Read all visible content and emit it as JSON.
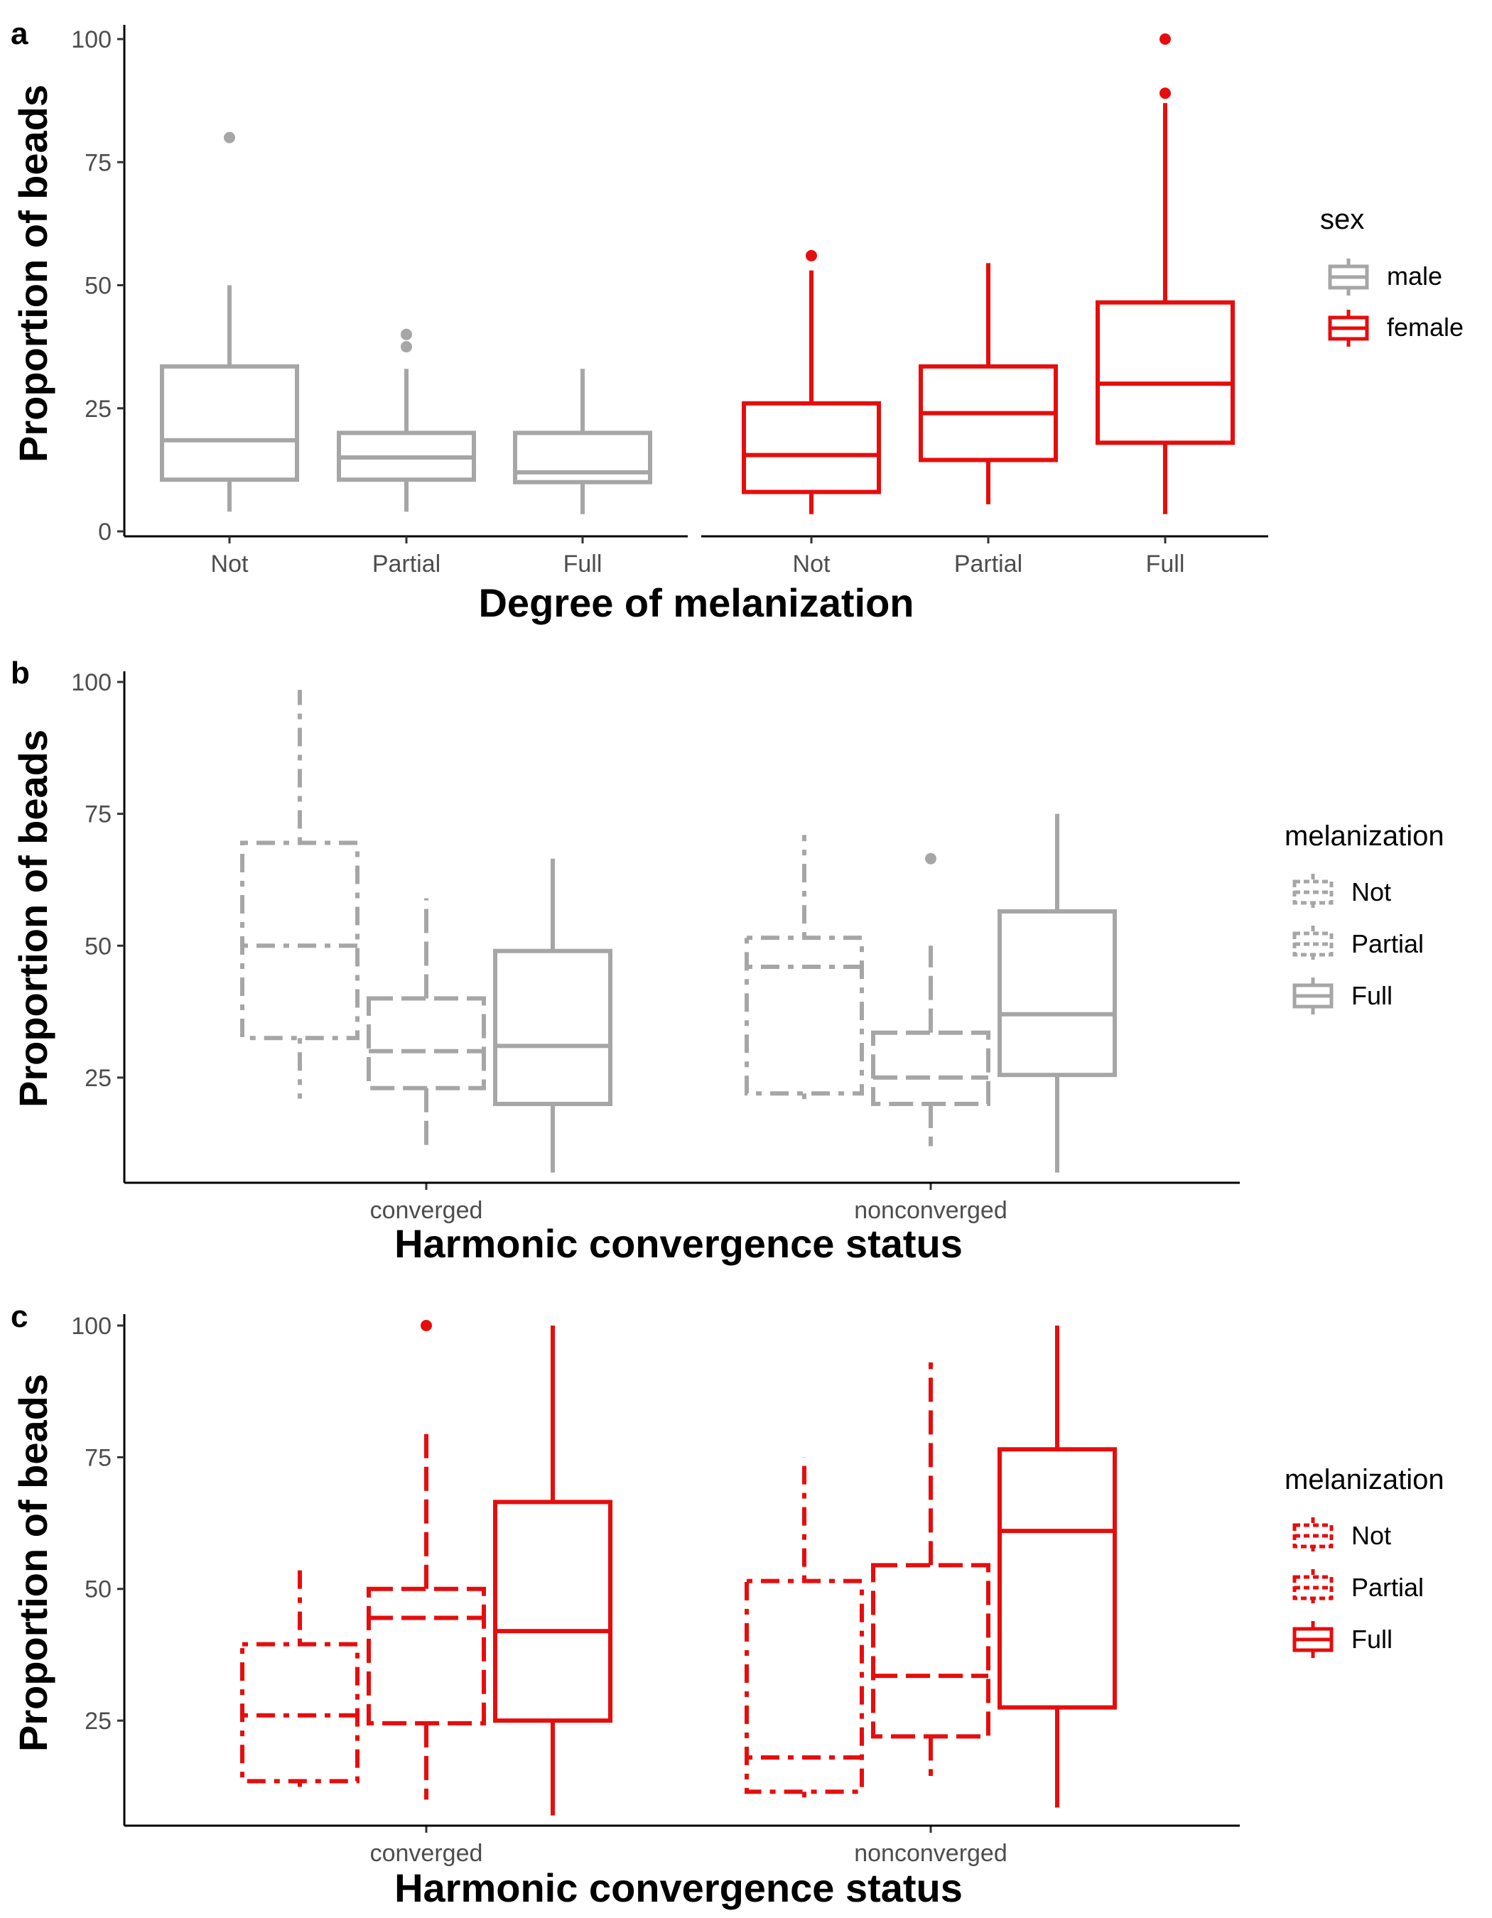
{
  "colors": {
    "male": "#a6a6a6",
    "female": "#e60d0d",
    "axis": "#000000",
    "tick_text": "#4d4d4d"
  },
  "chart_data": [
    {
      "panel": "a",
      "type": "boxplot",
      "ylabel": "Proportion of beads",
      "xlabel": "Degree of melanization",
      "ylim": [
        0,
        100
      ],
      "yticks": [
        0,
        25,
        50,
        75,
        100
      ],
      "legend": {
        "title": "sex",
        "placement": "right",
        "entries": [
          {
            "label": "male",
            "color": "#a6a6a6",
            "linetype": "solid"
          },
          {
            "label": "female",
            "color": "#e60d0d",
            "linetype": "solid"
          }
        ]
      },
      "facets": [
        {
          "group": "male",
          "color": "#a6a6a6",
          "boxes": [
            {
              "category": "Not",
              "min": 4,
              "q1": 10.5,
              "median": 18.5,
              "q3": 33.5,
              "max": 50,
              "outliers": [
                80
              ]
            },
            {
              "category": "Partial",
              "min": 4,
              "q1": 10.5,
              "median": 15,
              "q3": 20,
              "max": 33,
              "outliers": [
                37.5,
                40
              ]
            },
            {
              "category": "Full",
              "min": 3.5,
              "q1": 10,
              "median": 12,
              "q3": 20,
              "max": 33,
              "outliers": []
            }
          ]
        },
        {
          "group": "female",
          "color": "#e60d0d",
          "boxes": [
            {
              "category": "Not",
              "min": 3.5,
              "q1": 8,
              "median": 15.5,
              "q3": 26,
              "max": 53,
              "outliers": [
                56
              ]
            },
            {
              "category": "Partial",
              "min": 5.5,
              "q1": 14.5,
              "median": 24,
              "q3": 33.5,
              "max": 54.5,
              "outliers": []
            },
            {
              "category": "Full",
              "min": 3.5,
              "q1": 18,
              "median": 30,
              "q3": 46.5,
              "max": 87,
              "outliers": [
                89,
                100
              ]
            }
          ]
        }
      ]
    },
    {
      "panel": "b",
      "type": "boxplot",
      "ylabel": "Proportion of beads",
      "xlabel": "Harmonic convergence status",
      "ylim": [
        0,
        100
      ],
      "yticks": [
        25,
        50,
        75,
        100
      ],
      "categories": [
        "converged",
        "nonconverged"
      ],
      "legend": {
        "title": "melanization",
        "placement": "right",
        "entries": [
          {
            "label": "Not",
            "color": "#a6a6a6",
            "linetype": "dotdash"
          },
          {
            "label": "Partial",
            "color": "#a6a6a6",
            "linetype": "longdash"
          },
          {
            "label": "Full",
            "color": "#a6a6a6",
            "linetype": "solid"
          }
        ]
      },
      "series": [
        {
          "name": "Not",
          "color": "#a6a6a6",
          "linetype": "dotdash",
          "boxes": [
            {
              "category": "converged",
              "min": 21,
              "q1": 32.5,
              "median": 50,
              "q3": 69.5,
              "max": 98.5,
              "outliers": []
            },
            {
              "category": "nonconverged",
              "min": 20,
              "q1": 22,
              "median": 46,
              "q3": 51.5,
              "max": 71,
              "outliers": []
            }
          ]
        },
        {
          "name": "Partial",
          "color": "#a6a6a6",
          "linetype": "longdash",
          "boxes": [
            {
              "category": "converged",
              "min": 11,
              "q1": 23,
              "median": 30,
              "q3": 40,
              "max": 59,
              "outliers": []
            },
            {
              "category": "nonconverged",
              "min": 12,
              "q1": 20,
              "median": 25,
              "q3": 33.5,
              "max": 50,
              "outliers": [
                66.5
              ]
            }
          ]
        },
        {
          "name": "Full",
          "color": "#a6a6a6",
          "linetype": "solid",
          "boxes": [
            {
              "category": "converged",
              "min": 7,
              "q1": 20,
              "median": 31,
              "q3": 49,
              "max": 66.5,
              "outliers": []
            },
            {
              "category": "nonconverged",
              "min": 7,
              "q1": 25.5,
              "median": 37,
              "q3": 56.5,
              "max": 75,
              "outliers": []
            }
          ]
        }
      ]
    },
    {
      "panel": "c",
      "type": "boxplot",
      "ylabel": "Proportion of beads",
      "xlabel": "Harmonic convergence status",
      "ylim": [
        0,
        100
      ],
      "yticks": [
        25,
        50,
        75,
        100
      ],
      "categories": [
        "converged",
        "nonconverged"
      ],
      "legend": {
        "title": "melanization",
        "placement": "right",
        "entries": [
          {
            "label": "Not",
            "color": "#e60d0d",
            "linetype": "dotdash"
          },
          {
            "label": "Partial",
            "color": "#e60d0d",
            "linetype": "longdash"
          },
          {
            "label": "Full",
            "color": "#e60d0d",
            "linetype": "solid"
          }
        ]
      },
      "series": [
        {
          "name": "Not",
          "color": "#e60d0d",
          "linetype": "dotdash",
          "boxes": [
            {
              "category": "converged",
              "min": 11,
              "q1": 13.5,
              "median": 26,
              "q3": 39.5,
              "max": 55,
              "outliers": []
            },
            {
              "category": "nonconverged",
              "min": 9.5,
              "q1": 11.5,
              "median": 18,
              "q3": 51.5,
              "max": 75,
              "outliers": []
            }
          ]
        },
        {
          "name": "Partial",
          "color": "#e60d0d",
          "linetype": "longdash",
          "boxes": [
            {
              "category": "converged",
              "min": 10,
              "q1": 24.5,
              "median": 44.5,
              "q3": 50,
              "max": 80,
              "outliers": [
                100
              ]
            },
            {
              "category": "nonconverged",
              "min": 14.5,
              "q1": 22,
              "median": 33.5,
              "q3": 54.5,
              "max": 93,
              "outliers": []
            }
          ]
        },
        {
          "name": "Full",
          "color": "#e60d0d",
          "linetype": "solid",
          "boxes": [
            {
              "category": "converged",
              "min": 7,
              "q1": 25,
              "median": 42,
              "q3": 66.5,
              "max": 100,
              "outliers": []
            },
            {
              "category": "nonconverged",
              "min": 8.5,
              "q1": 27.5,
              "median": 61,
              "q3": 76.5,
              "max": 100,
              "outliers": []
            }
          ]
        }
      ]
    }
  ]
}
